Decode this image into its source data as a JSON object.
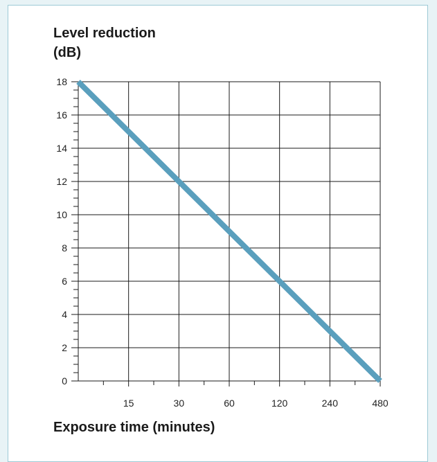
{
  "chart_data": {
    "type": "line",
    "title": "",
    "ylabel_lines": [
      "Level reduction",
      "(dB)"
    ],
    "xlabel": "Exposure time (minutes)",
    "x_scale": "log2",
    "x_tick_labels": [
      "15",
      "30",
      "60",
      "120",
      "240",
      "480"
    ],
    "x_ticks": [
      15,
      30,
      60,
      120,
      240,
      480
    ],
    "y_ticks": [
      0,
      2,
      4,
      6,
      8,
      10,
      12,
      14,
      16,
      18
    ],
    "xlim": [
      7.5,
      480
    ],
    "ylim": [
      0,
      18
    ],
    "grid": true,
    "series": [
      {
        "x": [
          7.5,
          480
        ],
        "y": [
          18,
          0
        ]
      }
    ],
    "colors": {
      "line": "#5a9fbd",
      "grid": "#1a1a1a",
      "frame_border": "#9cc9d5",
      "background": "#e8f3f6"
    }
  }
}
